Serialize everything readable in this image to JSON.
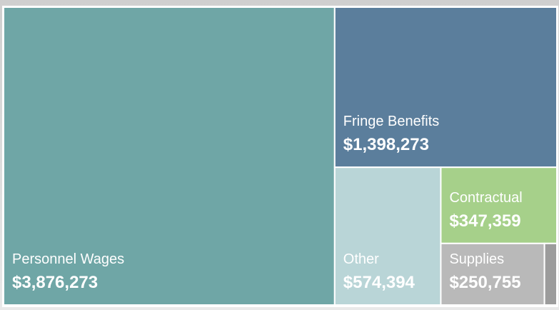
{
  "chart_data": {
    "type": "treemap",
    "categories": [
      "Personnel Wages",
      "Fringe Benefits",
      "Other",
      "Contractual",
      "Supplies",
      null
    ],
    "values": [
      3876273,
      1398273,
      574394,
      347359,
      250755,
      30000
    ],
    "value_labels": [
      "$3,876,273",
      "$1,398,273",
      "$574,394",
      "$347,359",
      "$250,755",
      null
    ],
    "colors": [
      "#6fa6a6",
      "#5b7e9c",
      "#b9d5d7",
      "#a6d08a",
      "#b9b9b9",
      "#9c9c9c"
    ]
  }
}
